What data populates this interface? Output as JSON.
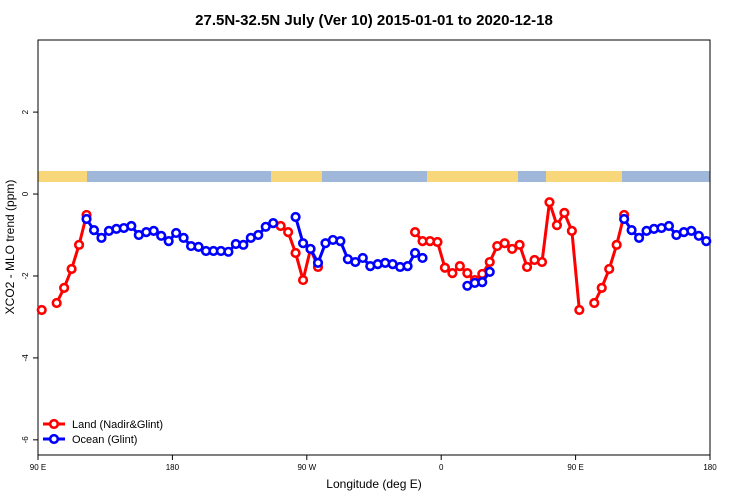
{
  "chart_data": {
    "type": "line",
    "title": "27.5N-32.5N July (Ver 10)   2015-01-01 to 2020-12-18",
    "x_label": "Longitude (deg E)",
    "y_label": "XCO2 - MLO trend (ppm)",
    "xlim": [
      90,
      540
    ],
    "ylim": [
      -6.37,
      3.76
    ],
    "xticks": [
      {
        "value": 90,
        "label": "90 E"
      },
      180,
      {
        "value": 270,
        "label": "90 W"
      },
      {
        "value": 360,
        "label": "0"
      },
      {
        "value": 450,
        "label": "90 E"
      },
      {
        "value": 540,
        "label": "180"
      }
    ],
    "yticks": [
      -6,
      -4,
      -2,
      0,
      2
    ],
    "legend": "bottomleft",
    "x": [
      92.5,
      97.5,
      102.5,
      107.5,
      112.5,
      117.5,
      122.5,
      127.5,
      132.5,
      137.5,
      142.5,
      147.5,
      152.5,
      157.5,
      162.5,
      167.5,
      172.5,
      177.5,
      182.5,
      187.5,
      192.5,
      197.5,
      202.5,
      207.5,
      212.5,
      217.5,
      222.5,
      227.5,
      232.5,
      237.5,
      242.5,
      247.5,
      252.5,
      257.5,
      262.5,
      267.5,
      272.5,
      277.5,
      282.5,
      287.5,
      292.5,
      297.5,
      302.5,
      307.5,
      312.5,
      317.5,
      322.5,
      327.5,
      332.5,
      337.5,
      342.5,
      347.5,
      352.5,
      357.5,
      362.5,
      367.5,
      372.5,
      377.5,
      382.5,
      387.5,
      392.5,
      397.5,
      402.5,
      407.5,
      412.5,
      417.5,
      422.5,
      427.5,
      432.5,
      437.5,
      442.5,
      447.5,
      452.5,
      457.5,
      462.5,
      467.5,
      472.5,
      477.5,
      482.5,
      487.5,
      492.5,
      497.5,
      502.5,
      507.5,
      512.5,
      517.5,
      522.5,
      527.5,
      532.5,
      537.5
    ],
    "series": [
      {
        "name": "Land (Nadir&Glint)",
        "color": "#ff0000",
        "values": [
          -2.83,
          null,
          -2.66,
          -2.29,
          -1.83,
          -1.24,
          -0.51,
          null,
          null,
          null,
          null,
          null,
          null,
          null,
          null,
          null,
          null,
          null,
          null,
          null,
          null,
          null,
          null,
          null,
          null,
          null,
          null,
          null,
          null,
          null,
          null,
          null,
          -0.78,
          -0.93,
          -1.44,
          -2.1,
          -1.34,
          -1.78,
          null,
          null,
          null,
          null,
          null,
          null,
          null,
          null,
          null,
          null,
          null,
          null,
          -0.93,
          -1.15,
          -1.15,
          -1.17,
          -1.8,
          -1.93,
          -1.76,
          -1.93,
          -2.1,
          -1.95,
          -1.66,
          -1.27,
          -1.2,
          -1.34,
          -1.24,
          -1.78,
          -1.61,
          -1.66,
          -0.2,
          -0.76,
          -0.46,
          -0.9,
          -2.83,
          null,
          -2.66,
          -2.29,
          -1.83,
          -1.24,
          -0.51,
          null,
          null,
          null,
          null,
          null,
          null,
          null,
          null,
          null,
          null,
          null
        ]
      },
      {
        "name": "Ocean (Glint)",
        "color": "#0000ff",
        "values": [
          null,
          null,
          null,
          null,
          null,
          null,
          -0.61,
          -0.88,
          -1.07,
          -0.9,
          -0.85,
          -0.83,
          -0.78,
          -1.0,
          -0.93,
          -0.9,
          -1.02,
          -1.15,
          -0.95,
          -1.07,
          -1.27,
          -1.29,
          -1.39,
          -1.39,
          -1.39,
          -1.41,
          -1.22,
          -1.24,
          -1.07,
          -1.0,
          -0.8,
          -0.71,
          null,
          null,
          -0.56,
          -1.2,
          -1.34,
          -1.68,
          -1.2,
          -1.12,
          -1.15,
          -1.59,
          -1.66,
          -1.56,
          -1.76,
          -1.71,
          -1.68,
          -1.71,
          -1.78,
          -1.76,
          -1.44,
          -1.56,
          null,
          null,
          null,
          null,
          null,
          -2.24,
          -2.17,
          -2.15,
          -1.9,
          null,
          null,
          null,
          null,
          null,
          null,
          null,
          null,
          null,
          null,
          null,
          null,
          null,
          null,
          null,
          null,
          null,
          -0.61,
          -0.88,
          -1.07,
          -0.9,
          -0.85,
          -0.83,
          -0.78,
          -1.0,
          -0.93,
          -0.9,
          -1.02,
          -1.15
        ]
      }
    ]
  }
}
